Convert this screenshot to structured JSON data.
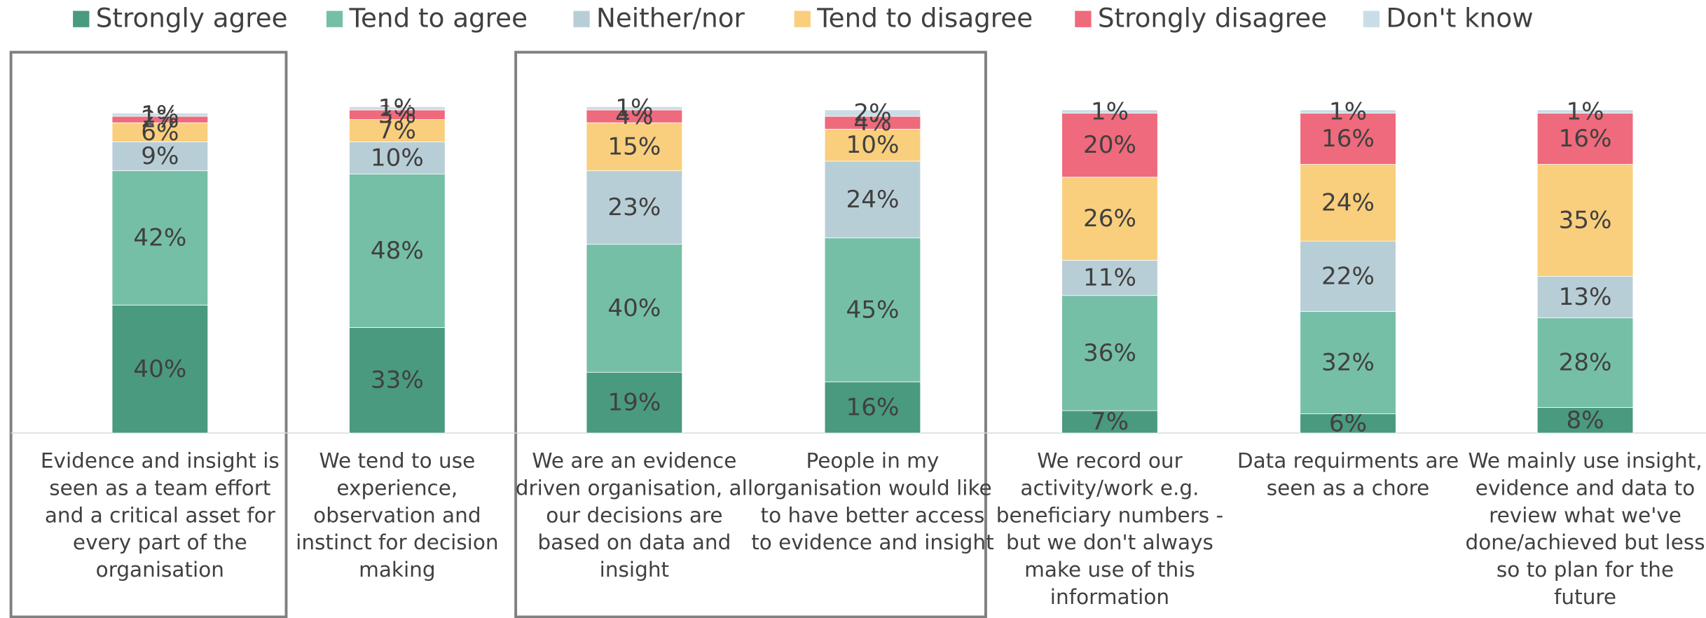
{
  "chart_data": {
    "type": "stacked_bar",
    "categories": [
      "Evidence and insight is seen as a team effort and a critical asset for every part of the organisation",
      "We tend to use experience, observation and instinct for decision making",
      "We are an evidence driven organisation, all our decisions are based on data and insight",
      "People in my organisation would like to have better access to evidence and insight",
      "We record our activity/work e.g. beneficiary numbers - but we don't always make use of this information",
      "Data requirments are seen as a chore",
      "We mainly use insight, evidence and data to review what we've done/achieved but less so to plan for the future"
    ],
    "series": [
      {
        "name": "Strongly agree",
        "color": "#4a9a7f",
        "values": [
          40,
          33,
          19,
          16,
          7,
          6,
          8
        ],
        "value_labels": [
          "40%",
          "33%",
          "19%",
          "16%",
          "7%",
          "6%",
          "8%"
        ]
      },
      {
        "name": "Tend to agree",
        "color": "#76bfa7",
        "values": [
          42,
          48,
          40,
          45,
          36,
          32,
          28
        ],
        "value_labels": [
          "42%",
          "48%",
          "40%",
          "45%",
          "36%",
          "32%",
          "28%"
        ]
      },
      {
        "name": "Neither/nor",
        "color": "#b8ced6",
        "values": [
          9,
          10,
          23,
          24,
          11,
          22,
          13
        ],
        "value_labels": [
          "9%",
          "10%",
          "23%",
          "24%",
          "11%",
          "22%",
          "13%"
        ]
      },
      {
        "name": "Tend to disagree",
        "color": "#f9cf7d",
        "values": [
          6,
          7,
          15,
          10,
          26,
          24,
          35
        ],
        "value_labels": [
          "6%",
          "7%",
          "15%",
          "10%",
          "26%",
          "24%",
          "35%"
        ]
      },
      {
        "name": "Strongly disagree",
        "color": "#ee6a7c",
        "values": [
          2,
          3,
          4,
          4,
          20,
          16,
          16
        ],
        "value_labels": [
          "2%",
          "3%",
          "4%",
          "4%",
          "20%",
          "16%",
          "16%"
        ]
      },
      {
        "name": "Don't know",
        "color": "#c9dde6",
        "values": [
          1,
          1,
          1,
          2,
          1,
          1,
          1
        ],
        "value_labels": [
          "1%",
          "1%",
          "1%",
          "2%",
          "1%",
          "1%",
          "1%"
        ]
      }
    ],
    "ylim": [
      0,
      100
    ]
  }
}
